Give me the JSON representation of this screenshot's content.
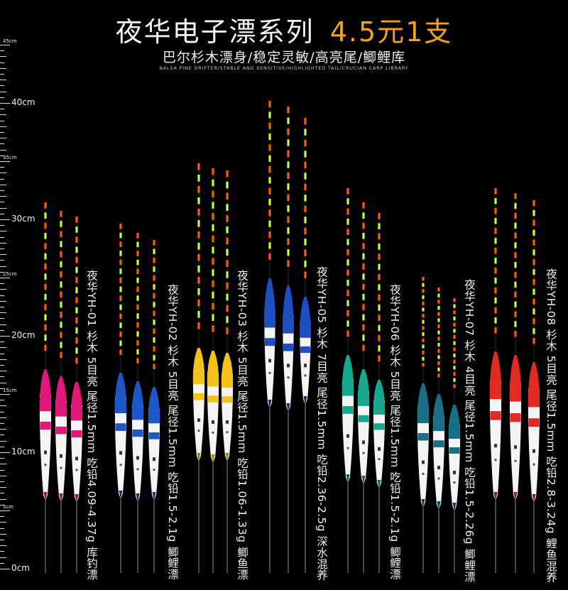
{
  "header": {
    "title": "夜华电子漂系列",
    "price": "4.5元1支",
    "subtitle": "巴尔杉木漂身/稳定灵敏/高亮尾/鲫鲤库",
    "subtitle_en": "BALSA PINE DRIFTER/STABLE AND SENSITIVE/HIGHLIGHTED TAIL/CRUCIAN CARP LIBRARY"
  },
  "ruler": {
    "labels": [
      {
        "text": "45cm",
        "cm": 45
      },
      {
        "text": "40cm",
        "cm": 40
      },
      {
        "text": "35cm",
        "cm": 35
      },
      {
        "text": "30cm",
        "cm": 30
      },
      {
        "text": "25cm",
        "cm": 25
      },
      {
        "text": "20cm",
        "cm": 20
      },
      {
        "text": "15cm",
        "cm": 15
      },
      {
        "text": "10cm",
        "cm": 10
      },
      {
        "text": "5cm",
        "cm": 5
      },
      {
        "text": "0cm",
        "cm": 0
      }
    ]
  },
  "products": [
    {
      "id": "YH-01",
      "color": "#e0187a",
      "cap": "#8f0d4c",
      "text": "夜华YH-01 杉木 5目亮 尾径1.5mm 吃铅4.09-4.37g 库钓漂"
    },
    {
      "id": "YH-02",
      "color": "#1d56c9",
      "cap": "#0f2f78",
      "text": "夜华YH-02 杉木 5目亮 尾径1.5mm 吃铅1.5-2.1g 鲫鲤漂"
    },
    {
      "id": "YH-03",
      "color": "#f2c21a",
      "cap": "#a6800a",
      "text": "夜华YH-03 杉木 5目亮 尾径1.5mm 吃铅1.06-1.33g 鲫鱼漂"
    },
    {
      "id": "YH-05",
      "color": "#1d4fc2",
      "cap": "#0e2a73",
      "text": "夜华YH-05 杉木 7目亮 尾径1.5mm 吃铅2.36-2.5g 深水混养"
    },
    {
      "id": "YH-06",
      "color": "#15a88c",
      "cap": "#0b6455",
      "text": "夜华YH-06 杉木 5目亮 尾径1.5mm 吃铅1.5-2.1g 鲫鲤漂"
    },
    {
      "id": "YH-07",
      "color": "#1a6f86",
      "cap": "#0c3f4d",
      "text": "夜华YH-07 杉木 4目亮 尾径1.5mm 吃铅1.5-2.26g 鲫鲤漂"
    },
    {
      "id": "YH-08",
      "color": "#e12a22",
      "cap": "#8a1410",
      "text": "夜华YH-08 杉木 5目亮 尾径1.5mm 吃铅2.8-3.24g 鲤鱼混养"
    }
  ]
}
